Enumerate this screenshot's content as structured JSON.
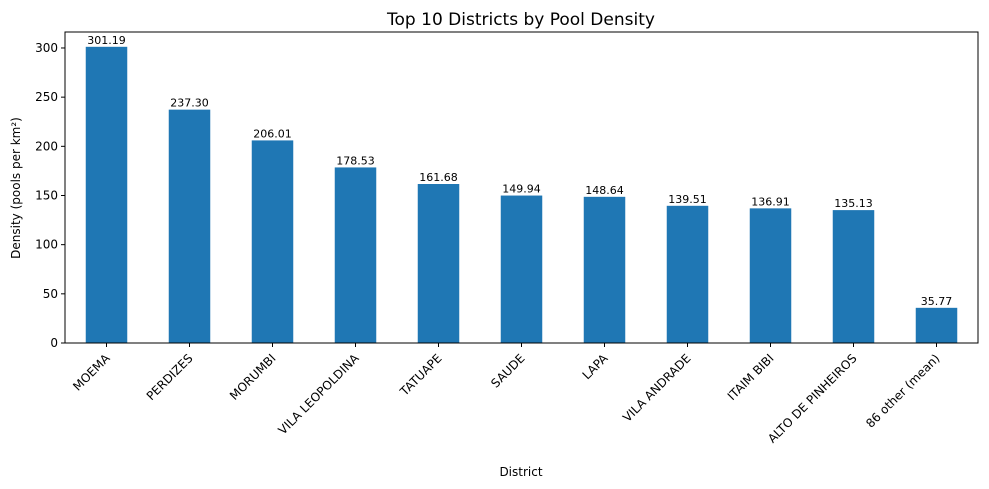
{
  "chart_data": {
    "type": "bar",
    "title": "Top 10 Districts by Pool Density",
    "xlabel": "District",
    "ylabel": "Density (pools per km²)",
    "categories": [
      "MOEMA",
      "PERDIZES",
      "MORUMBI",
      "VILA LEOPOLDINA",
      "TATUAPE",
      "SAUDE",
      "LAPA",
      "VILA ANDRADE",
      "ITAIM BIBI",
      "ALTO DE PINHEIROS",
      "86 other (mean)"
    ],
    "values": [
      301.19,
      237.3,
      206.01,
      178.53,
      161.68,
      149.94,
      148.64,
      139.51,
      136.91,
      135.13,
      35.77
    ],
    "value_labels": [
      "301.19",
      "237.30",
      "206.01",
      "178.53",
      "161.68",
      "149.94",
      "148.64",
      "139.51",
      "136.91",
      "135.13",
      "35.77"
    ],
    "yticks": [
      0,
      50,
      100,
      150,
      200,
      250,
      300
    ],
    "ylim": [
      0,
      316.25
    ],
    "grid": false,
    "bar_color": "#1f77b4"
  }
}
